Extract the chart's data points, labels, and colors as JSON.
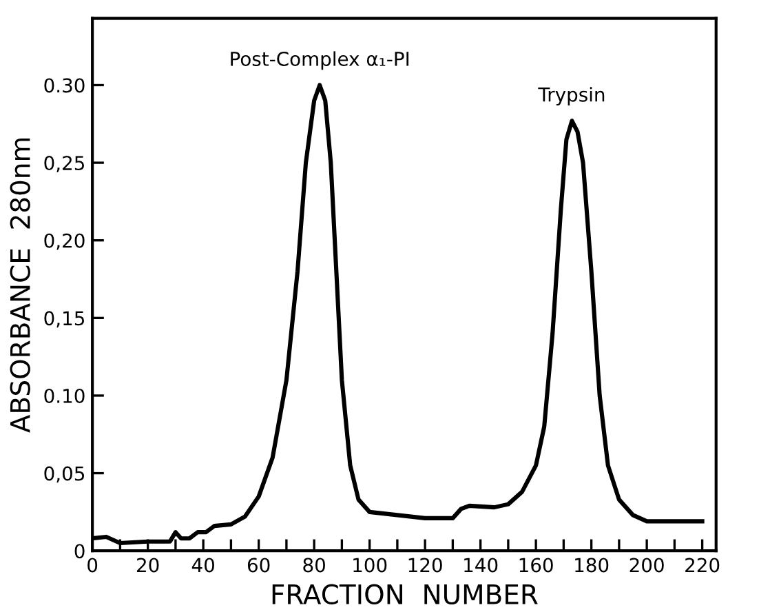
{
  "chart_data": {
    "type": "line",
    "xlabel": "FRACTION  NUMBER",
    "ylabel": "ABSORBANCE  280nm",
    "annotations": [
      {
        "text": "Post-Complex α₁-PI",
        "x": 82,
        "y": 0.3
      },
      {
        "text": "Trypsin",
        "x": 173,
        "y": 0.277
      }
    ],
    "x": [
      0,
      5,
      10,
      20,
      28,
      30,
      32,
      35,
      38,
      41,
      44,
      50,
      55,
      60,
      65,
      70,
      74,
      77,
      80,
      82,
      84,
      86,
      88,
      90,
      93,
      96,
      100,
      110,
      120,
      130,
      133,
      136,
      145,
      150,
      155,
      160,
      163,
      166,
      169,
      171,
      173,
      175,
      177,
      180,
      183,
      186,
      190,
      195,
      200,
      210,
      220
    ],
    "series": [
      {
        "color": "#000000",
        "values": [
          0.008,
          0.009,
          0.005,
          0.006,
          0.006,
          0.012,
          0.008,
          0.008,
          0.012,
          0.012,
          0.016,
          0.017,
          0.022,
          0.035,
          0.06,
          0.11,
          0.18,
          0.25,
          0.29,
          0.3,
          0.29,
          0.25,
          0.18,
          0.11,
          0.055,
          0.033,
          0.025,
          0.023,
          0.021,
          0.021,
          0.027,
          0.029,
          0.028,
          0.03,
          0.038,
          0.055,
          0.08,
          0.14,
          0.22,
          0.265,
          0.277,
          0.27,
          0.25,
          0.18,
          0.1,
          0.055,
          0.033,
          0.023,
          0.019,
          0.019,
          0.019
        ]
      }
    ],
    "xlim": [
      0,
      225
    ],
    "ylim": [
      0,
      0.343
    ],
    "xticks": [
      0,
      {
        "value": 10,
        "label": null
      },
      20,
      {
        "value": 30,
        "label": null
      },
      40,
      {
        "value": 50,
        "label": null
      },
      60,
      {
        "value": 70,
        "label": null
      },
      80,
      {
        "value": 90,
        "label": null
      },
      100,
      {
        "value": 110,
        "label": null
      },
      120,
      {
        "value": 130,
        "label": null
      },
      140,
      {
        "value": 150,
        "label": null
      },
      160,
      {
        "value": 170,
        "label": null
      },
      180,
      {
        "value": 190,
        "label": null
      },
      200,
      {
        "value": 210,
        "label": null
      },
      220
    ],
    "yticks": [
      0,
      {
        "value": 0.05,
        "label": "0,05"
      },
      {
        "value": 0.1,
        "label": "0.10"
      },
      {
        "value": 0.15,
        "label": "0,15"
      },
      {
        "value": 0.2,
        "label": "0,20"
      },
      {
        "value": 0.25,
        "label": "0,25"
      },
      {
        "value": 0.3,
        "label": "0.30"
      }
    ],
    "grid": false,
    "legend": false,
    "marker": "none",
    "line_style": "solid"
  }
}
